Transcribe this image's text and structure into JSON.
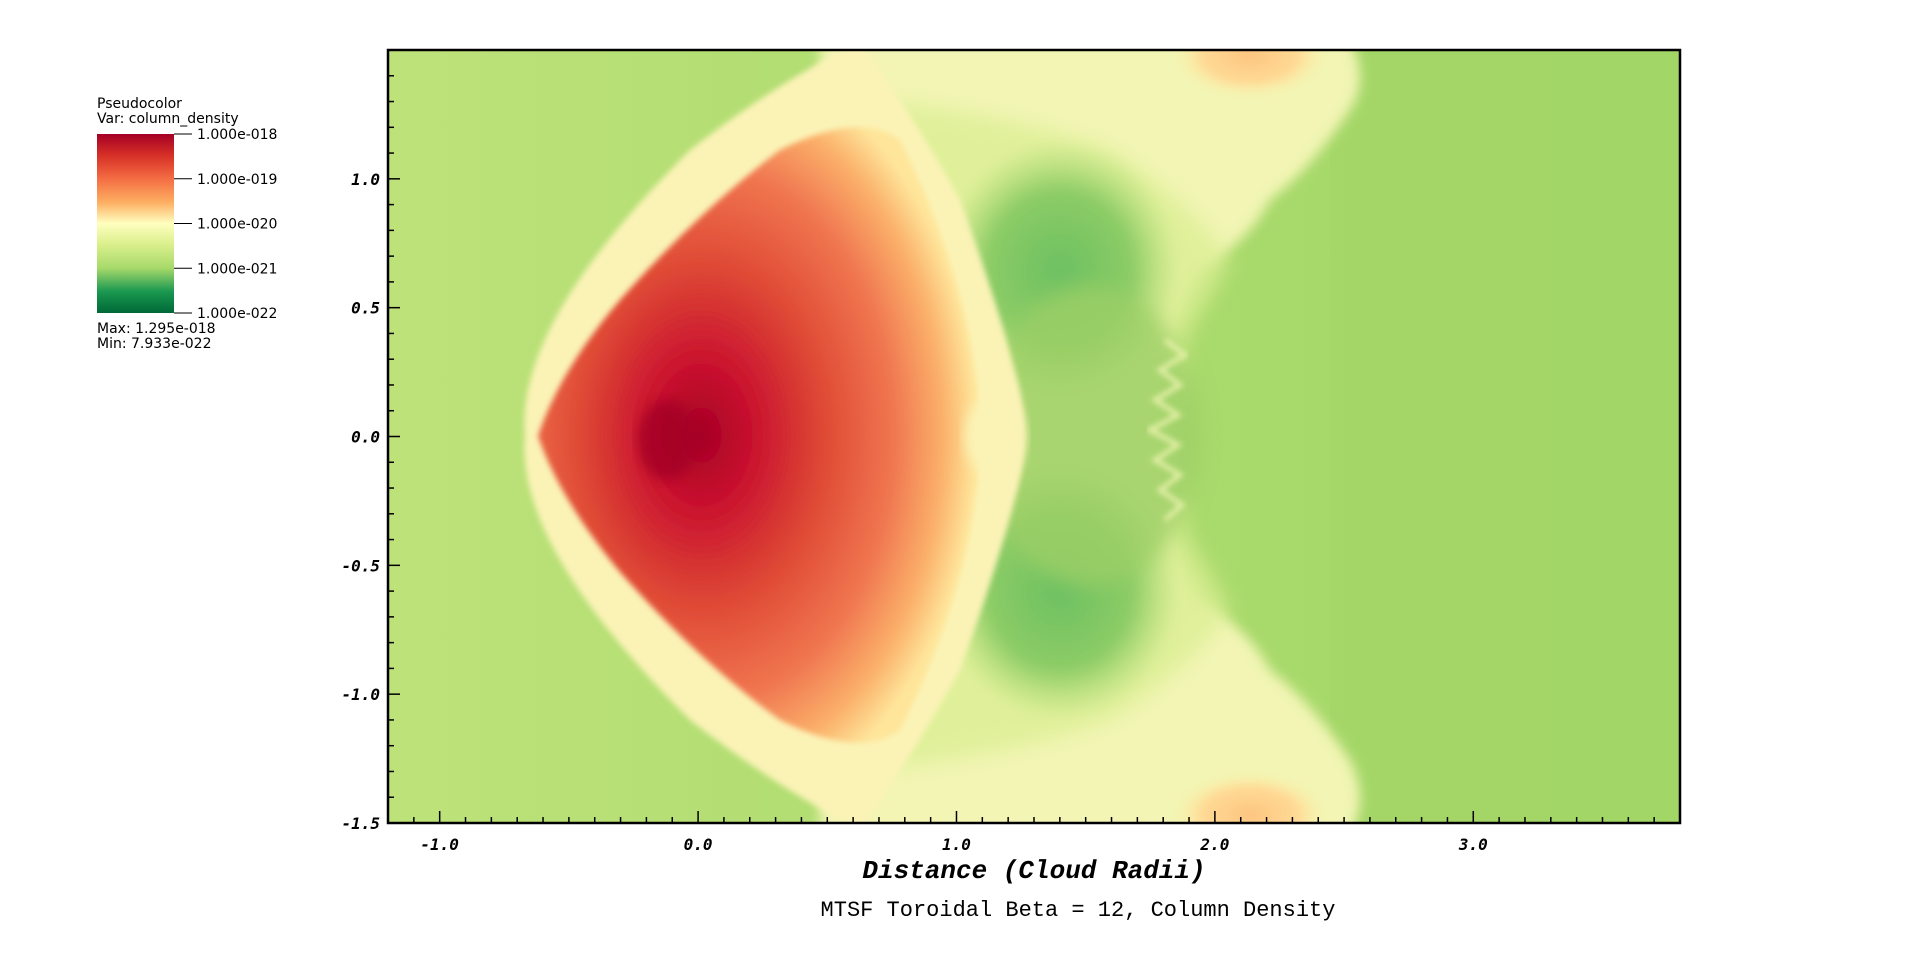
{
  "chart_data": {
    "type": "heatmap",
    "title": "MTSF Toroidal Beta = 12, Column Density",
    "xlabel": "Distance (Cloud Radii)",
    "ylabel": "",
    "xlim": [
      -1.2,
      3.8
    ],
    "ylim": [
      -1.5,
      1.5
    ],
    "x_ticks": [
      -1.0,
      0.0,
      1.0,
      2.0,
      3.0
    ],
    "x_tick_labels": [
      "-1.0",
      "0.0",
      "1.0",
      "2.0",
      "3.0"
    ],
    "y_ticks": [
      1.0,
      0.5,
      0.0,
      -0.5,
      -1.0,
      -1.5
    ],
    "y_tick_labels": [
      "1.0",
      "0.5",
      "0.0",
      "-0.5",
      "-1.0",
      "-1.5"
    ],
    "colorscale": "log",
    "colormap": [
      "#006837",
      "#1a9850",
      "#66bd63",
      "#a6d96a",
      "#d9ef8b",
      "#ffffbf",
      "#fee08b",
      "#fdae61",
      "#f46d43",
      "#d73027",
      "#a50026"
    ],
    "legend": {
      "title": "Pseudocolor",
      "var": "Var: column_density",
      "ticks": [
        "1.000e-018",
        "1.000e-019",
        "1.000e-020",
        "1.000e-021",
        "1.000e-022"
      ],
      "max_label": "Max:  1.295e-018",
      "min_label": "Min:  7.933e-022"
    }
  }
}
